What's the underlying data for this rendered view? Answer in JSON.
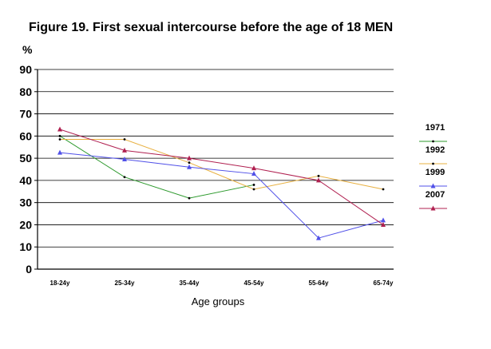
{
  "chart_data": {
    "type": "line",
    "title": "Figure 19. First sexual intercourse before the age of 18 MEN",
    "ylabel": "%",
    "xlabel": "Age groups",
    "ylim": [
      0,
      90
    ],
    "yticks": [
      "0",
      "10",
      "20",
      "30",
      "40",
      "50",
      "60",
      "70",
      "80",
      "90"
    ],
    "categories": [
      "18-24y",
      "25-34y",
      "35-44y",
      "45-54y",
      "55-64y",
      "65-74y"
    ],
    "grid": true,
    "legend_position": "right",
    "series": [
      {
        "name": "1971",
        "color": "#2e9a2e",
        "marker": "dot",
        "values": [
          60,
          41.5,
          32,
          38,
          null,
          null
        ]
      },
      {
        "name": "1992",
        "color": "#e8b040",
        "marker": "dot",
        "values": [
          58.5,
          58.5,
          48,
          36,
          42,
          36
        ]
      },
      {
        "name": "1999",
        "color": "#5050e8",
        "marker": "triangle",
        "values": [
          52.5,
          49.5,
          46,
          43,
          14,
          22
        ]
      },
      {
        "name": "2007",
        "color": "#b02050",
        "marker": "triangle",
        "values": [
          63,
          53.5,
          50,
          45.5,
          40,
          20
        ]
      }
    ]
  }
}
